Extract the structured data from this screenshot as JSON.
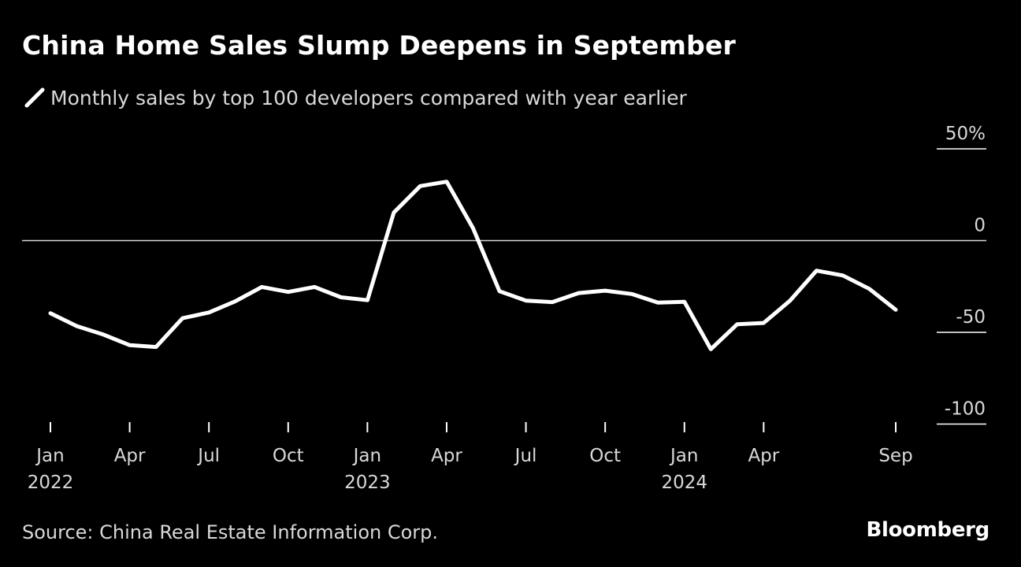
{
  "title": "China Home Sales Slump Deepens in September",
  "subtitle": "Monthly sales by top 100 developers compared with year earlier",
  "source": "Source: China Real Estate Information Corp.",
  "brand": "Bloomberg",
  "colors": {
    "background": "#000000",
    "line": "#ffffff",
    "text": "#ffffff",
    "muted_text": "#d9d9d9",
    "zero_line": "#d9d9d9"
  },
  "chart_data": {
    "type": "line",
    "y_ticks": [
      {
        "value": 50,
        "label": "50%"
      },
      {
        "value": 0,
        "label": "0"
      },
      {
        "value": -50,
        "label": "-50"
      },
      {
        "value": -100,
        "label": "-100"
      }
    ],
    "ylim": [
      -100,
      50
    ],
    "x_ticks": [
      {
        "x": "2022-01",
        "label": "Jan",
        "year": "2022"
      },
      {
        "x": "2022-04",
        "label": "Apr",
        "year": ""
      },
      {
        "x": "2022-07",
        "label": "Jul",
        "year": ""
      },
      {
        "x": "2022-10",
        "label": "Oct",
        "year": ""
      },
      {
        "x": "2023-01",
        "label": "Jan",
        "year": "2023"
      },
      {
        "x": "2023-04",
        "label": "Apr",
        "year": ""
      },
      {
        "x": "2023-07",
        "label": "Jul",
        "year": ""
      },
      {
        "x": "2023-10",
        "label": "Oct",
        "year": ""
      },
      {
        "x": "2024-01",
        "label": "Jan",
        "year": "2024"
      },
      {
        "x": "2024-04",
        "label": "Apr",
        "year": ""
      },
      {
        "x": "2024-09",
        "label": "Sep",
        "year": ""
      }
    ],
    "xlim": [
      "2022-01",
      "2024-09"
    ],
    "reference_line": 0,
    "series": [
      {
        "x": [
          "2022-01",
          "2022-02",
          "2022-03",
          "2022-04",
          "2022-05",
          "2022-06",
          "2022-07",
          "2022-08",
          "2022-09",
          "2022-10",
          "2022-11",
          "2022-12",
          "2023-01",
          "2023-02",
          "2023-03",
          "2023-04",
          "2023-05",
          "2023-06",
          "2023-07",
          "2023-08",
          "2023-09",
          "2023-10",
          "2023-11",
          "2023-12",
          "2024-01",
          "2024-02",
          "2024-03",
          "2024-04",
          "2024-05",
          "2024-06",
          "2024-07",
          "2024-08",
          "2024-09"
        ],
        "values": [
          -39.6,
          -46.6,
          -51.2,
          -57.0,
          -58.0,
          -42.3,
          -39.2,
          -33.1,
          -25.3,
          -28.0,
          -25.3,
          -30.9,
          -32.5,
          15.3,
          29.7,
          32.1,
          6.7,
          -27.6,
          -32.7,
          -33.5,
          -28.6,
          -27.3,
          -29.1,
          -33.8,
          -33.4,
          -59.2,
          -45.6,
          -44.9,
          -32.7,
          -16.4,
          -19.0,
          -26.3,
          -37.7
        ]
      }
    ]
  }
}
